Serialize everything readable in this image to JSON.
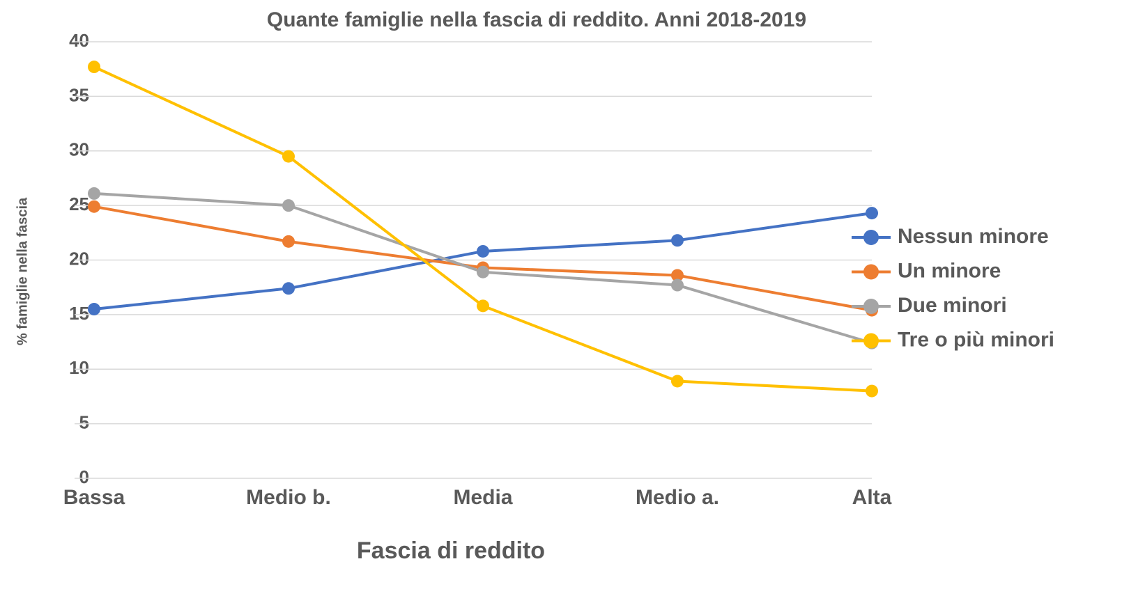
{
  "chart_data": {
    "type": "line",
    "title": "Quante famiglie nella fascia di reddito. Anni 2018-2019",
    "x_label": "Fascia di reddito",
    "y_label": "% famiglie  nella fascia",
    "categories": [
      "Bassa",
      "Medio b.",
      "Media",
      "Medio a.",
      "Alta"
    ],
    "series": [
      {
        "name": "Nessun minore",
        "color": "#4472c4",
        "values": [
          15.5,
          17.4,
          20.8,
          21.8,
          24.3
        ]
      },
      {
        "name": "Un minore",
        "color": "#ed7d31",
        "values": [
          24.9,
          21.7,
          19.3,
          18.6,
          15.4
        ]
      },
      {
        "name": "Due minori",
        "color": "#a5a5a5",
        "values": [
          26.1,
          25.0,
          18.9,
          17.7,
          12.4
        ]
      },
      {
        "name": "Tre o più minori",
        "color": "#ffc000",
        "values": [
          37.7,
          29.5,
          15.8,
          8.9,
          8.0
        ]
      }
    ],
    "ylim": [
      0,
      40
    ],
    "yticks": [
      0,
      5,
      10,
      15,
      20,
      25,
      30,
      35,
      40
    ],
    "grid": true,
    "legend": "right"
  }
}
